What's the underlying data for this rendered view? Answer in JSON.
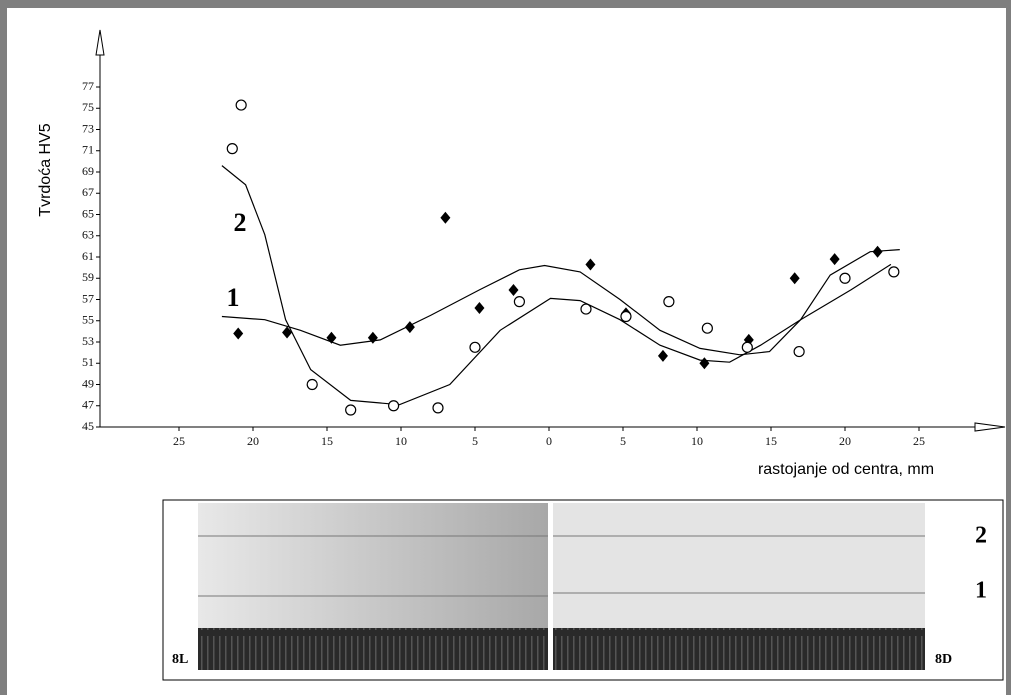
{
  "chart_data": {
    "type": "scatter",
    "xlabel": "rastojanje od centra, mm",
    "ylabel": "Tvrdoća HV5",
    "xlim": [
      -30,
      30
    ],
    "ylim": [
      45,
      77
    ],
    "xticks": [
      {
        "value": -25,
        "label": "25"
      },
      {
        "value": -20,
        "label": "20"
      },
      {
        "value": -15,
        "label": "15"
      },
      {
        "value": -10,
        "label": "10"
      },
      {
        "value": -5,
        "label": "5"
      },
      0,
      5,
      10,
      15,
      20,
      25
    ],
    "yticks": [
      45,
      47,
      49,
      51,
      53,
      55,
      57,
      59,
      61,
      63,
      65,
      67,
      69,
      71,
      73,
      75,
      77
    ],
    "series": [
      {
        "name": "1",
        "marker": "diamond",
        "color": "#000000",
        "x": [
          -21.0,
          -17.7,
          -14.7,
          -11.9,
          -9.4,
          -7.0,
          -4.7,
          -2.4,
          2.8,
          5.2,
          7.7,
          10.5,
          13.5,
          16.6,
          19.3,
          22.2
        ],
        "values": [
          53.8,
          53.9,
          53.4,
          53.4,
          54.4,
          64.7,
          56.2,
          57.9,
          60.3,
          55.7,
          51.7,
          51.0,
          53.2,
          59.0,
          60.8,
          61.5
        ],
        "curve_x": [
          -22.1,
          -19.2,
          -16.8,
          -14.1,
          -11.4,
          -8.0,
          -4.7,
          -2.0,
          -0.3,
          2.1,
          4.8,
          7.5,
          10.2,
          12.9,
          14.9,
          17.0,
          19.0,
          21.7,
          23.7
        ],
        "curve_values": [
          55.4,
          55.1,
          54.1,
          52.7,
          53.2,
          55.5,
          57.9,
          59.8,
          60.2,
          59.6,
          57.0,
          54.1,
          52.4,
          51.8,
          52.1,
          55.1,
          59.3,
          61.5,
          61.7
        ]
      },
      {
        "name": "2",
        "marker": "circle",
        "color": "#000000",
        "x": [
          -21.4,
          -20.8,
          -16.0,
          -13.4,
          -10.5,
          -7.5,
          -5.0,
          -2.0,
          2.5,
          5.2,
          8.1,
          10.7,
          13.4,
          16.9,
          20.0,
          23.3
        ],
        "values": [
          71.2,
          75.3,
          49.0,
          46.6,
          47.0,
          46.8,
          52.5,
          56.8,
          56.1,
          55.4,
          56.8,
          54.3,
          52.5,
          52.1,
          59.0,
          59.6
        ],
        "curve_x": [
          -22.1,
          -20.5,
          -19.2,
          -17.8,
          -16.1,
          -13.4,
          -10.1,
          -6.7,
          -3.3,
          0.1,
          2.1,
          4.8,
          7.5,
          10.2,
          12.2,
          14.3,
          17.0,
          20.4,
          23.1
        ],
        "curve_values": [
          69.6,
          67.8,
          63.1,
          55.1,
          50.4,
          47.5,
          47.1,
          49.0,
          54.1,
          57.1,
          56.9,
          55.1,
          52.7,
          51.3,
          51.1,
          52.7,
          55.1,
          57.9,
          60.3
        ]
      }
    ]
  },
  "photo": {
    "left_label": "8L",
    "right_label": "8D",
    "row_labels": [
      "2",
      "1"
    ]
  }
}
